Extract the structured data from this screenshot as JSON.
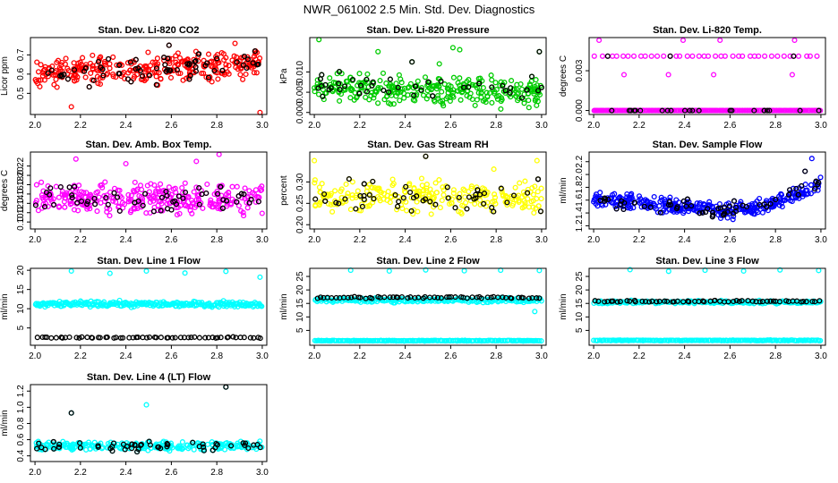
{
  "chart_data": {
    "title": "NWR_061002  2.5 Min. Std. Dev. Diagnostics",
    "type": "scatter",
    "shared_x": {
      "ticks": [
        2.0,
        2.2,
        2.4,
        2.6,
        2.8,
        3.0
      ],
      "tick_labels": [
        "2.0",
        "2.2",
        "2.4",
        "2.6",
        "2.8",
        "3.0"
      ],
      "range": [
        1.98,
        3.02
      ]
    },
    "panels": [
      {
        "title": "Stan. Dev. Li-820 CO2",
        "ylabel": "Licor ppm",
        "ylim": [
          0.39,
          0.79
        ],
        "yticks": [
          0.5,
          0.6,
          0.7
        ],
        "ytick_labels": [
          "0.5",
          "0.6",
          "0.7"
        ],
        "series_color": "#ff0000",
        "black_count": 70,
        "series": {
          "pattern": "noise",
          "base": 0.63,
          "slope": 0.05,
          "amp": 0.06,
          "n": 360,
          "outliers": [
            [
              2.16,
              0.43
            ],
            [
              2.99,
              0.4
            ],
            [
              2.59,
              0.75
            ],
            [
              2.88,
              0.76
            ]
          ]
        }
      },
      {
        "title": "Stan. Dev. Li-820 Pressure",
        "ylabel": "kPa",
        "ylim": [
          -0.0005,
          0.0185
        ],
        "yticks": [
          0.0,
          0.005,
          0.01
        ],
        "ytick_labels": [
          "0.000",
          "0.005",
          "0.010"
        ],
        "series_color": "#00cc00",
        "black_count": 50,
        "series": {
          "pattern": "noise",
          "base": 0.0055,
          "slope": -0.001,
          "amp": 0.003,
          "n": 340,
          "clip_low": 0.0,
          "outliers": [
            [
              2.02,
              0.018
            ],
            [
              2.28,
              0.015
            ],
            [
              2.61,
              0.016
            ],
            [
              2.64,
              0.0155
            ],
            [
              2.99,
              0.015
            ],
            [
              2.43,
              0.0125
            ],
            [
              2.55,
              0.012
            ]
          ]
        }
      },
      {
        "title": "Stan. Dev. Li-820 Temp.",
        "ylabel": "degrees C",
        "ylim": [
          -0.0003,
          0.0055
        ],
        "yticks": [
          0.0,
          0.003
        ],
        "ytick_labels": [
          "0.000",
          "0.003"
        ],
        "series_color": "#ff00ff",
        "black_count": 25,
        "series": {
          "pattern": "levels",
          "levels": [
            [
              0.0,
              180
            ],
            [
              0.0041,
              40
            ],
            [
              0.0027,
              4
            ],
            [
              0.0053,
              4
            ]
          ]
        }
      },
      {
        "title": "Stan. Dev. Amb. Box Temp.",
        "ylabel": "degrees C",
        "ylim": [
          0.085,
          0.25
        ],
        "yticks": [
          0.1,
          0.12,
          0.14,
          0.16,
          0.18,
          0.2,
          0.22
        ],
        "ytick_labels": [
          "0.10",
          "0.12",
          "0.14",
          "0.16",
          "0.18",
          "0.20",
          "0.22"
        ],
        "series_color": "#ff00ff",
        "black_count": 60,
        "series": {
          "pattern": "noise",
          "base": 0.15,
          "slope": 0.0,
          "amp": 0.025,
          "n": 360,
          "outliers": [
            [
              2.18,
              0.235
            ],
            [
              2.81,
              0.245
            ],
            [
              2.4,
              0.225
            ],
            [
              2.71,
              0.23
            ]
          ]
        }
      },
      {
        "title": "Stan. Dev. Gas Stream RH",
        "ylabel": "percent",
        "ylim": [
          0.19,
          0.37
        ],
        "yticks": [
          0.2,
          0.25,
          0.3
        ],
        "ytick_labels": [
          "0.20",
          "0.25",
          "0.30"
        ],
        "series_color": "#ffff00",
        "black_count": 55,
        "series": {
          "pattern": "noise",
          "base": 0.265,
          "slope": 0.0,
          "amp": 0.03,
          "n": 300,
          "outliers": [
            [
              2.0,
              0.35
            ],
            [
              2.49,
              0.36
            ],
            [
              2.98,
              0.35
            ],
            [
              2.79,
              0.33
            ]
          ]
        }
      },
      {
        "title": "Stan. Dev. Sample Flow",
        "ylabel": "ml/min",
        "ylim": [
          1.15,
          2.35
        ],
        "yticks": [
          1.2,
          1.4,
          1.6,
          1.8,
          2.0,
          2.2
        ],
        "ytick_labels": [
          "1.2",
          "1.4",
          "1.6",
          "1.8",
          "2.0",
          "2.2"
        ],
        "series_color": "#0000ff",
        "black_count": 65,
        "series": {
          "pattern": "valley",
          "edge": 1.62,
          "mid": 1.45,
          "end": 1.85,
          "amp": 0.1,
          "n": 380,
          "outliers": [
            [
              2.96,
              2.25
            ],
            [
              2.93,
              2.05
            ],
            [
              2.71,
              1.55
            ]
          ]
        }
      },
      {
        "title": "Stan. Dev. Line 1 Flow",
        "ylabel": "ml/min",
        "ylim": [
          0.5,
          20.5
        ],
        "yticks": [
          5,
          10,
          15,
          20
        ],
        "ytick_labels": [
          "5",
          "10",
          "15",
          "20"
        ],
        "series_color": "#00ffff",
        "black_count": 0,
        "series": {
          "pattern": "bands",
          "bands": [
            [
              11.2,
              0.6,
              260,
              "#00ffff"
            ],
            [
              2.5,
              0.12,
              60,
              "#000000"
            ]
          ],
          "outliers": [
            [
              2.16,
              19.8
            ],
            [
              2.33,
              19.2
            ],
            [
              2.49,
              19.8
            ],
            [
              2.66,
              19.3
            ],
            [
              2.84,
              19.7
            ],
            [
              2.99,
              18.2
            ]
          ]
        }
      },
      {
        "title": "Stan. Dev. Line 2 Flow",
        "ylabel": "ml/min",
        "ylim": [
          -0.5,
          28
        ],
        "yticks": [
          5,
          10,
          15,
          20,
          25
        ],
        "ytick_labels": [
          "5",
          "10",
          "15",
          "20",
          "25"
        ],
        "series_color": "#00ffff",
        "black_count": 0,
        "series": {
          "pattern": "bands",
          "bands": [
            [
              16.2,
              0.7,
              220,
              "#00ffff"
            ],
            [
              17.2,
              0.3,
              60,
              "#000000"
            ],
            [
              1.2,
              0.1,
              180,
              "#00ffff"
            ]
          ],
          "outliers": [
            [
              2.16,
              27.3
            ],
            [
              2.33,
              27.0
            ],
            [
              2.49,
              27.4
            ],
            [
              2.66,
              27.1
            ],
            [
              2.82,
              27.3
            ],
            [
              2.99,
              27.2
            ],
            [
              2.97,
              12.0
            ]
          ]
        }
      },
      {
        "title": "Stan. Dev. Line 3 Flow",
        "ylabel": "ml/min",
        "ylim": [
          -0.5,
          28
        ],
        "yticks": [
          5,
          10,
          15,
          20,
          25
        ],
        "ytick_labels": [
          "5",
          "10",
          "15",
          "20",
          "25"
        ],
        "series_color": "#00ffff",
        "black_count": 0,
        "series": {
          "pattern": "bands",
          "bands": [
            [
              15.5,
              0.5,
              200,
              "#00ffff"
            ],
            [
              15.8,
              0.25,
              60,
              "#000000"
            ],
            [
              1.3,
              0.1,
              180,
              "#00ffff"
            ]
          ],
          "outliers": [
            [
              2.16,
              27.5
            ],
            [
              2.33,
              26.9
            ],
            [
              2.49,
              27.3
            ],
            [
              2.66,
              27.0
            ],
            [
              2.82,
              27.4
            ],
            [
              2.99,
              27.2
            ]
          ]
        }
      },
      {
        "title": "Stan. Dev. Line 4 (LT) Flow",
        "ylabel": "ml/min",
        "ylim": [
          0.33,
          1.28
        ],
        "yticks": [
          0.4,
          0.6,
          0.8,
          1.0,
          1.2
        ],
        "ytick_labels": [
          "0.4",
          "0.6",
          "0.8",
          "1.0",
          "1.2"
        ],
        "series_color": "#00ffff",
        "black_count": 60,
        "series": {
          "pattern": "noise",
          "base": 0.52,
          "slope": 0.0,
          "amp": 0.045,
          "n": 320,
          "outliers": [
            [
              2.16,
              0.93
            ],
            [
              2.49,
              1.03
            ],
            [
              2.84,
              1.25
            ]
          ]
        }
      }
    ]
  }
}
